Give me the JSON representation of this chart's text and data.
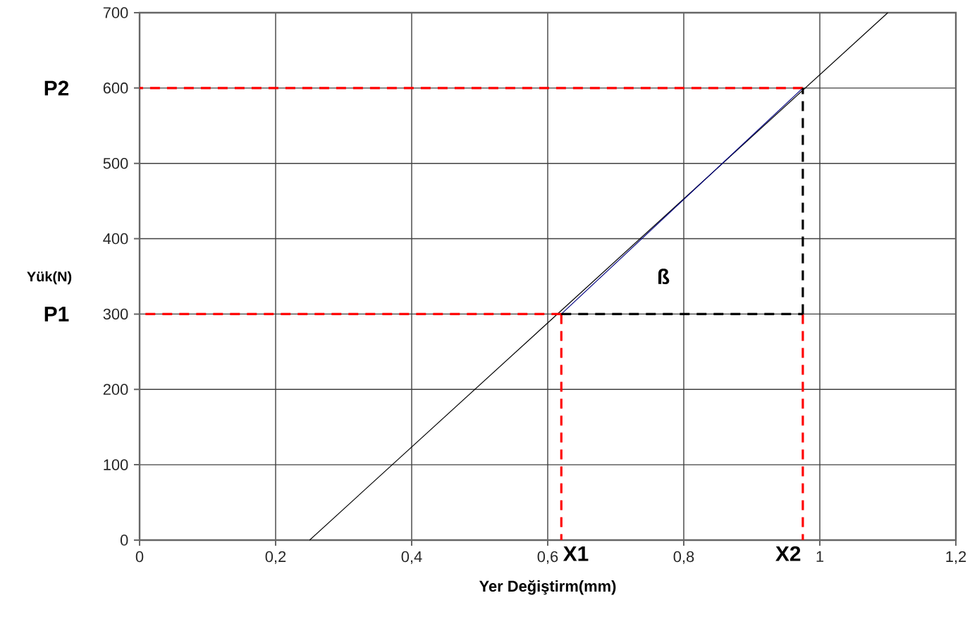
{
  "chart_data": {
    "type": "line",
    "xlabel": "Yer Değiştirm(mm)",
    "ylabel": "Yük(N)",
    "xlim": [
      0,
      1.2
    ],
    "ylim": [
      0,
      700
    ],
    "xticks": [
      0,
      {
        "value": 0.2,
        "label": "0,2"
      },
      {
        "value": 0.4,
        "label": "0,4"
      },
      {
        "value": 0.6,
        "label": "0,6"
      },
      {
        "value": 0.8,
        "label": "0,8"
      },
      1,
      {
        "value": 1.2,
        "label": "1,2"
      }
    ],
    "yticks": [
      0,
      100,
      200,
      300,
      400,
      500,
      600,
      700
    ],
    "grid": true,
    "marker": "none",
    "series": [
      {
        "color": "#000000",
        "x": [
          0.25,
          1.1
        ],
        "values": [
          0,
          700
        ]
      },
      {
        "color": "#000080",
        "x": [
          0.62,
          0.975
        ],
        "values": [
          300,
          600
        ]
      },
      {
        "color": "#ff0000",
        "line_style": "dashed",
        "x": [
          0.975,
          0
        ],
        "values": [
          600,
          600
        ]
      },
      {
        "color": "#ff0000",
        "line_style": "dashed",
        "x": [
          0.62,
          0
        ],
        "values": [
          300,
          300
        ]
      },
      {
        "color": "#ff0000",
        "line_style": "dashed",
        "x": [
          0.62,
          0.62
        ],
        "values": [
          300,
          0
        ]
      },
      {
        "color": "#ff0000",
        "line_style": "dashed",
        "x": [
          0.975,
          0.975
        ],
        "values": [
          300,
          0
        ]
      },
      {
        "color": "#000000",
        "line_style": "dashed",
        "x": [
          0.62,
          0.975
        ],
        "values": [
          300,
          300
        ]
      },
      {
        "color": "#000000",
        "line_style": "dashed",
        "x": [
          0.975,
          0.975
        ],
        "values": [
          300,
          600
        ]
      }
    ],
    "annotations": [
      "P2",
      "P1",
      "X1",
      "X2",
      "ß"
    ]
  }
}
